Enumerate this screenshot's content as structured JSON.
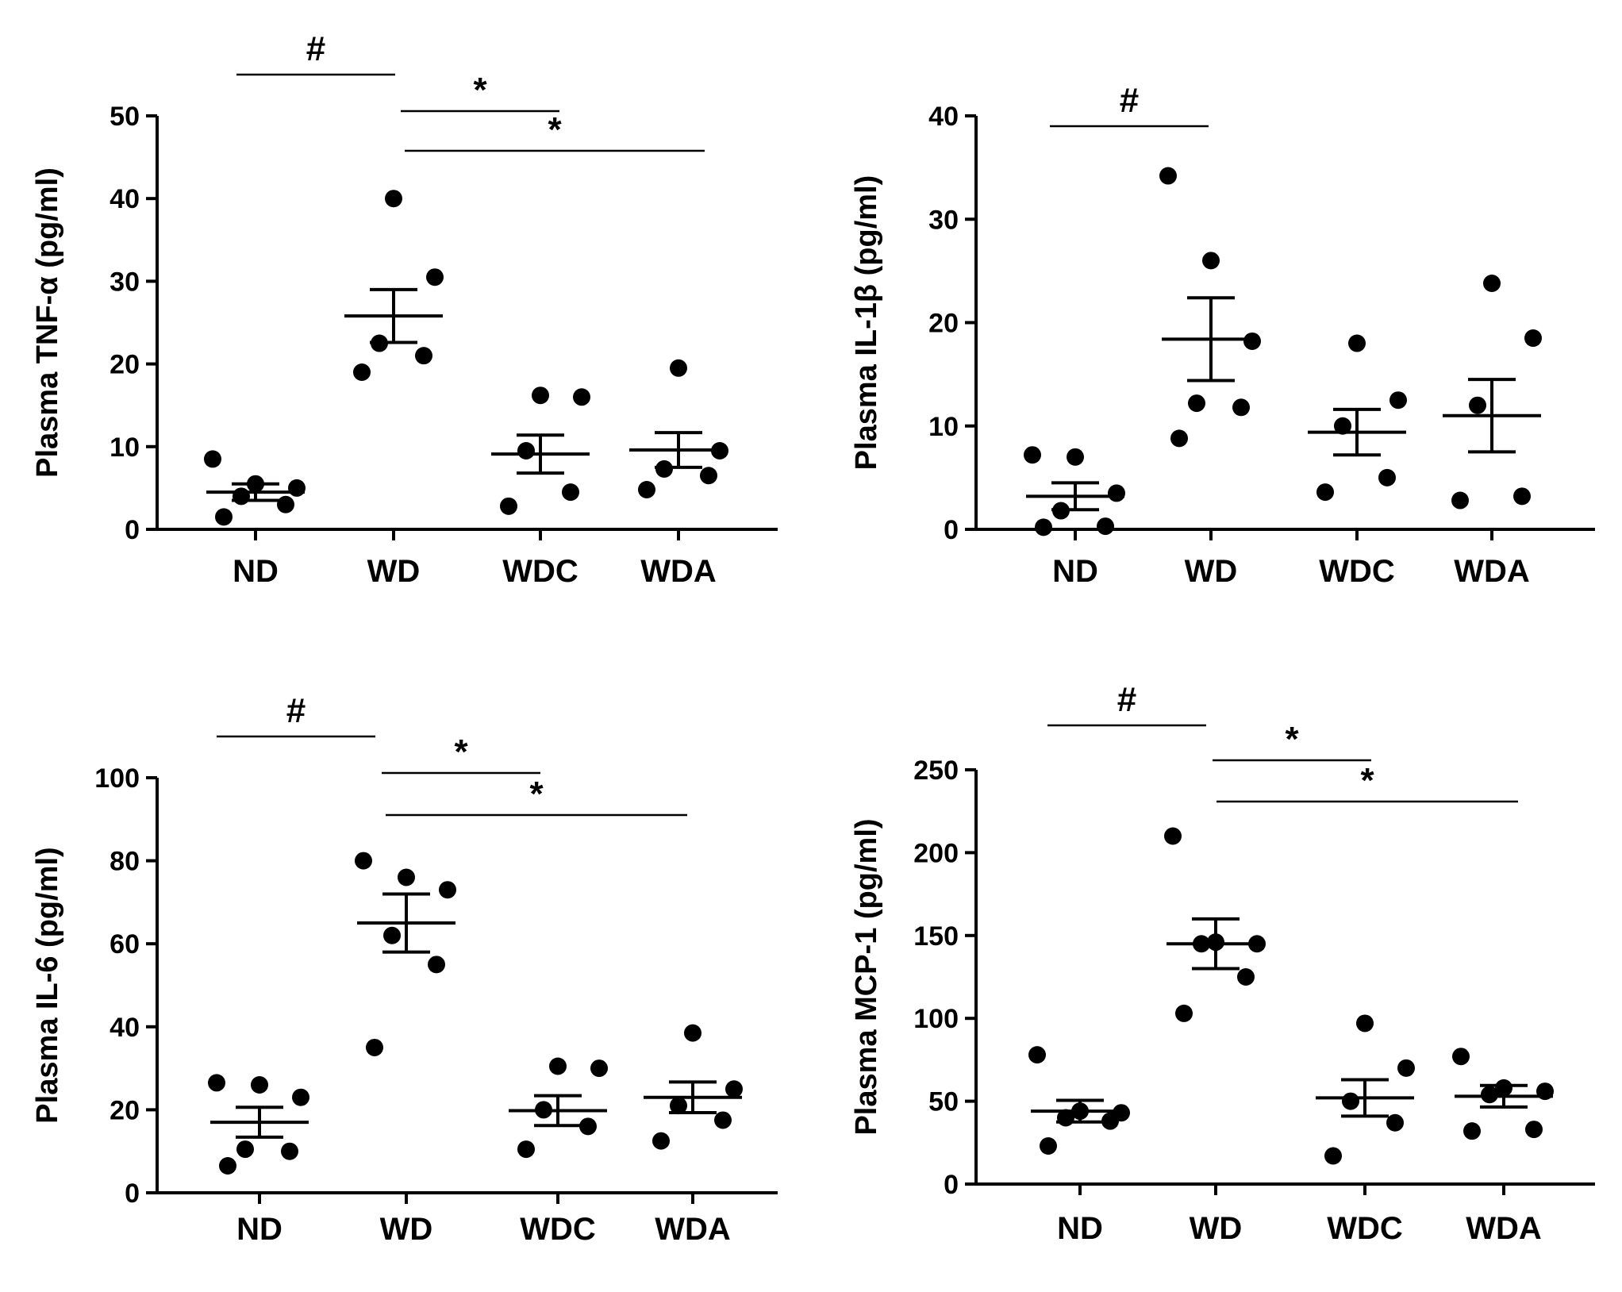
{
  "chart_data": [
    {
      "type": "scatter",
      "subtype": "dot-plot-mean-sem",
      "ylabel": "Plasma TNF-α (pg/ml)",
      "ylim": [
        0,
        50
      ],
      "yticks": [
        0,
        10,
        20,
        30,
        40,
        50
      ],
      "categories": [
        "ND",
        "WD",
        "WDC",
        "WDA"
      ],
      "series": [
        {
          "name": "ND",
          "points": [
            1.5,
            3,
            4,
            5,
            5.5,
            8.5
          ],
          "mean": 4.5,
          "sem": 1.0
        },
        {
          "name": "WD",
          "points": [
            19,
            21,
            22.5,
            30.5,
            40
          ],
          "mean": 25.8,
          "sem": 3.2
        },
        {
          "name": "WDC",
          "points": [
            2.8,
            4.5,
            9.5,
            16,
            16.2
          ],
          "mean": 9.1,
          "sem": 2.3
        },
        {
          "name": "WDA",
          "points": [
            4.8,
            6.5,
            7.3,
            9.5,
            19.5
          ],
          "mean": 9.6,
          "sem": 2.1
        }
      ],
      "significance": [
        {
          "from": "ND",
          "to": "WD",
          "label": "#"
        },
        {
          "from": "WD",
          "to": "WDC",
          "label": "*"
        },
        {
          "from": "WD",
          "to": "WDA",
          "label": "*"
        }
      ]
    },
    {
      "type": "scatter",
      "subtype": "dot-plot-mean-sem",
      "ylabel": "Plasma IL-1β (pg/ml)",
      "ylim": [
        0,
        40
      ],
      "yticks": [
        0,
        10,
        20,
        30,
        40
      ],
      "categories": [
        "ND",
        "WD",
        "WDC",
        "WDA"
      ],
      "series": [
        {
          "name": "ND",
          "points": [
            0.2,
            0.3,
            1.8,
            3.5,
            7,
            7.2
          ],
          "mean": 3.2,
          "sem": 1.3
        },
        {
          "name": "WD",
          "points": [
            8.8,
            11.8,
            12.2,
            18.2,
            26,
            34.2
          ],
          "mean": 18.4,
          "sem": 4.0
        },
        {
          "name": "WDC",
          "points": [
            3.6,
            5,
            10,
            12.5,
            18
          ],
          "mean": 9.4,
          "sem": 2.2
        },
        {
          "name": "WDA",
          "points": [
            2.8,
            3.2,
            12,
            18.5,
            23.8
          ],
          "mean": 11,
          "sem": 3.5
        }
      ],
      "significance": [
        {
          "from": "ND",
          "to": "WD",
          "label": "#"
        }
      ]
    },
    {
      "type": "scatter",
      "subtype": "dot-plot-mean-sem",
      "ylabel": "Plasma IL-6 (pg/ml)",
      "ylim": [
        0,
        100
      ],
      "yticks": [
        0,
        20,
        40,
        60,
        80,
        100
      ],
      "categories": [
        "ND",
        "WD",
        "WDC",
        "WDA"
      ],
      "series": [
        {
          "name": "ND",
          "points": [
            6.5,
            10,
            10.5,
            23,
            26,
            26.5
          ],
          "mean": 17,
          "sem": 3.6
        },
        {
          "name": "WD",
          "points": [
            35,
            55,
            62,
            73,
            76,
            80
          ],
          "mean": 65,
          "sem": 7.0
        },
        {
          "name": "WDC",
          "points": [
            10.5,
            16,
            20,
            30,
            30.5
          ],
          "mean": 19.8,
          "sem": 3.6
        },
        {
          "name": "WDA",
          "points": [
            12.5,
            17.5,
            21,
            25,
            38.5
          ],
          "mean": 23,
          "sem": 3.7
        }
      ],
      "significance": [
        {
          "from": "ND",
          "to": "WD",
          "label": "#"
        },
        {
          "from": "WD",
          "to": "WDC",
          "label": "*"
        },
        {
          "from": "WD",
          "to": "WDA",
          "label": "*"
        }
      ]
    },
    {
      "type": "scatter",
      "subtype": "dot-plot-mean-sem",
      "ylabel": "Plasma MCP-1 (pg/ml)",
      "ylim": [
        0,
        250
      ],
      "yticks": [
        0,
        50,
        100,
        150,
        200,
        250
      ],
      "categories": [
        "ND",
        "WD",
        "WDC",
        "WDA"
      ],
      "series": [
        {
          "name": "ND",
          "points": [
            23,
            38,
            40,
            43,
            44,
            78
          ],
          "mean": 44,
          "sem": 6.5
        },
        {
          "name": "WD",
          "points": [
            103,
            125,
            145,
            145,
            146,
            210
          ],
          "mean": 145,
          "sem": 15
        },
        {
          "name": "WDC",
          "points": [
            17,
            37,
            50,
            70,
            97
          ],
          "mean": 52,
          "sem": 11
        },
        {
          "name": "WDA",
          "points": [
            32,
            33,
            54,
            56,
            58,
            77
          ],
          "mean": 53,
          "sem": 6.5
        }
      ],
      "significance": [
        {
          "from": "ND",
          "to": "WD",
          "label": "#"
        },
        {
          "from": "WD",
          "to": "WDC",
          "label": "*"
        },
        {
          "from": "WD",
          "to": "WDA",
          "label": "*"
        }
      ]
    }
  ]
}
